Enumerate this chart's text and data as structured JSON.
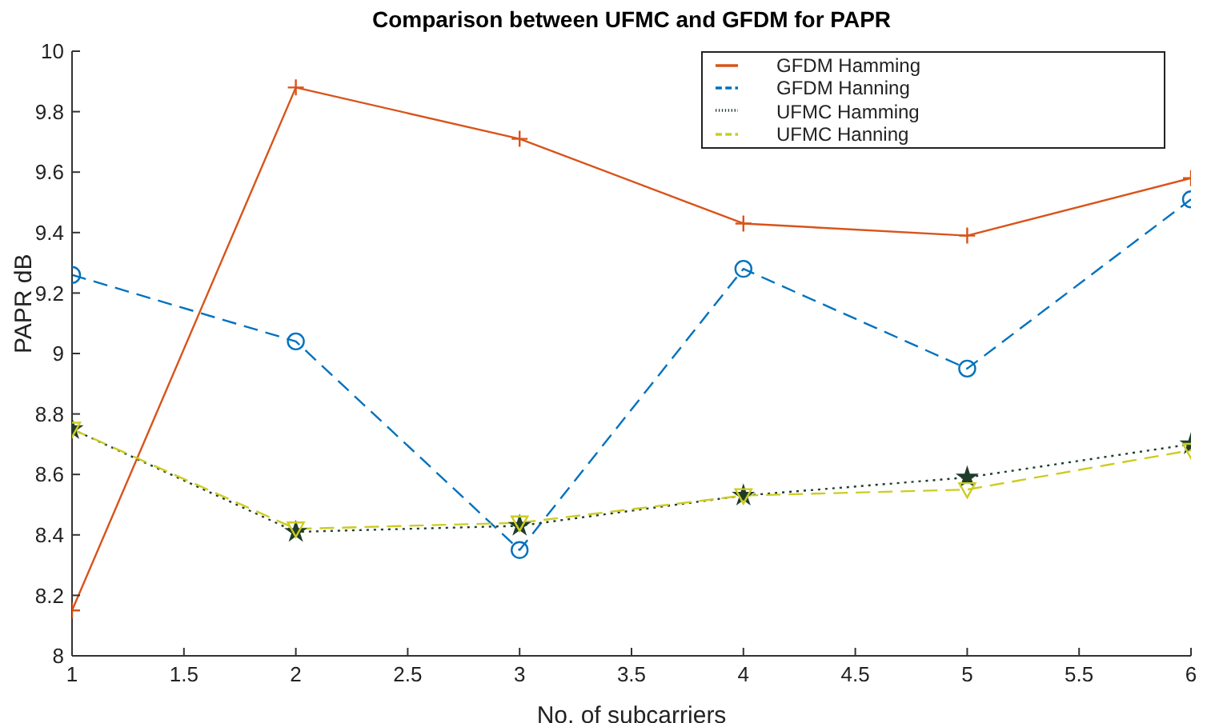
{
  "chart_data": {
    "type": "line",
    "title": "Comparison between UFMC and GFDM for PAPR",
    "xlabel": "No. of subcarriers",
    "ylabel": "PAPR dB",
    "x": [
      1,
      2,
      3,
      4,
      5,
      6
    ],
    "series": [
      {
        "name": "GFDM Hamming",
        "color": "#d95319",
        "values": [
          8.15,
          9.88,
          9.71,
          9.43,
          9.39,
          9.58
        ],
        "marker": "cross",
        "line_style": "solid"
      },
      {
        "name": "GFDM Hanning",
        "color": "#0072bd",
        "values": [
          9.26,
          9.04,
          8.35,
          9.28,
          8.95,
          9.51
        ],
        "marker": "circle",
        "line_style": "dashed"
      },
      {
        "name": "UFMC Hamming",
        "color": "#1f3d2a",
        "values": [
          8.75,
          8.41,
          8.43,
          8.53,
          8.59,
          8.7
        ],
        "marker": "star",
        "line_style": "dotted"
      },
      {
        "name": "UFMC Hanning",
        "color": "#cccc22",
        "values": [
          8.75,
          8.42,
          8.44,
          8.53,
          8.55,
          8.68
        ],
        "marker": "triangle",
        "line_style": "dashed"
      }
    ],
    "xlim": [
      1,
      6
    ],
    "xticks": [
      1,
      1.5,
      2,
      2.5,
      3,
      3.5,
      4,
      4.5,
      5,
      5.5,
      6
    ],
    "ylim": [
      8,
      10
    ],
    "yticks": [
      8,
      8.2,
      8.4,
      8.6,
      8.8,
      9,
      9.2,
      9.4,
      9.6,
      9.8,
      10
    ],
    "grid": false,
    "legend": "top right"
  }
}
